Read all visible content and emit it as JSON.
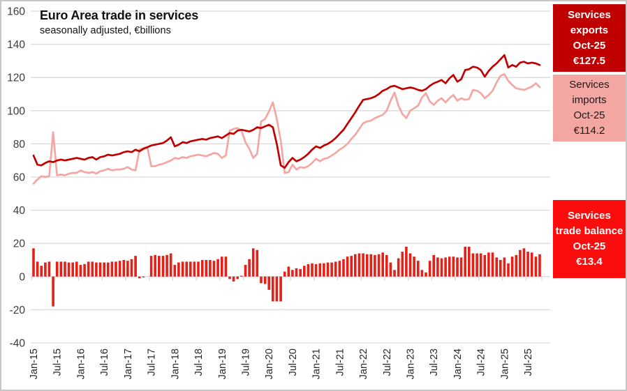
{
  "chart_data": {
    "type": "line+bar",
    "title": "Euro Area trade in services",
    "subtitle": "seasonally adjusted, €billions",
    "ylim": [
      -40,
      160
    ],
    "y_ticks": [
      160,
      140,
      120,
      100,
      80,
      60,
      40,
      20,
      0,
      -20,
      -40
    ],
    "grid": true,
    "grid_color": "#d9d9d9",
    "axis_label_color": "#3b3b3b",
    "x_tick_labels": [
      "Jan-15",
      "Jul-15",
      "Jan-16",
      "Jul-16",
      "Jan-17",
      "Jul-17",
      "Jan-18",
      "Jul-18",
      "Jan-19",
      "Jul-19",
      "Jan-20",
      "Jul-20",
      "Jan-21",
      "Jul-21",
      "Jan-22",
      "Jul-22",
      "Jan-23",
      "Jul-23",
      "Jan-24",
      "Jul-24",
      "Jan-25",
      "Jul-25"
    ],
    "x_tick_indices": [
      0,
      6,
      12,
      18,
      24,
      30,
      36,
      42,
      48,
      54,
      60,
      66,
      72,
      78,
      84,
      90,
      96,
      102,
      108,
      114,
      120,
      126
    ],
    "x_range": "Jan-15 to Oct-25, monthly",
    "series": [
      {
        "name": "Services exports",
        "type": "line",
        "color": "#c00000",
        "values": [
          73,
          67.5,
          67,
          68.5,
          69.5,
          69,
          70,
          70.5,
          70,
          70.5,
          71,
          71.5,
          71,
          70.5,
          71.5,
          72,
          70.5,
          72,
          72.5,
          73.5,
          73,
          73.5,
          74,
          75,
          75.5,
          75,
          76.5,
          75.5,
          77,
          78,
          79,
          79.5,
          80,
          80.5,
          82,
          84,
          78.5,
          79.5,
          81,
          80.5,
          81.5,
          82,
          82.5,
          83,
          82.5,
          83.5,
          84,
          84.5,
          83.5,
          85,
          86.5,
          86,
          88,
          88.5,
          88,
          87.5,
          88.5,
          90,
          89.5,
          90.5,
          91.5,
          90,
          80,
          67,
          65.5,
          69,
          71.5,
          69.5,
          70.5,
          72,
          74,
          76.5,
          78.5,
          77.5,
          79,
          80,
          81.5,
          83.5,
          86,
          88.5,
          92,
          95.5,
          99,
          103,
          106.5,
          107,
          107.5,
          108.5,
          110,
          112,
          113,
          114.5,
          115,
          114,
          113,
          113.5,
          114,
          113.5,
          112.5,
          112,
          113,
          115,
          116.5,
          117.5,
          118.5,
          116.5,
          119.5,
          121.5,
          117.5,
          119,
          124.5,
          125,
          126.5,
          126,
          124.5,
          120.5,
          124,
          126.5,
          128.5,
          131,
          133.5,
          126,
          127.5,
          126.5,
          129,
          129.5,
          128.5,
          129,
          128.5,
          127.5
        ]
      },
      {
        "name": "Services imports",
        "type": "line",
        "color": "#f4a6a2",
        "values": [
          56,
          58.5,
          60.5,
          60,
          60.5,
          87,
          61,
          61.5,
          61,
          62,
          62.5,
          62.5,
          64,
          63,
          62.5,
          63,
          62,
          63.5,
          64,
          65,
          64,
          64.5,
          64.5,
          65,
          66,
          64.5,
          64,
          76.5,
          77.5,
          78,
          66.5,
          66.5,
          67.5,
          68,
          69,
          70,
          71.5,
          71,
          72,
          71.5,
          72.5,
          73,
          73.5,
          73,
          72.5,
          73.5,
          74.5,
          74,
          71.5,
          73,
          88,
          89,
          89.5,
          88,
          81,
          77,
          71.5,
          74,
          93.5,
          95,
          99.5,
          105,
          95,
          82,
          62.5,
          63,
          67.5,
          64.5,
          66,
          65.5,
          66.5,
          68.5,
          71,
          69.5,
          71,
          71.5,
          73,
          74.5,
          76.5,
          78,
          80,
          83,
          85.5,
          89,
          92.5,
          93.5,
          94,
          95.5,
          96.5,
          97.5,
          100,
          106,
          111,
          103,
          98,
          95.5,
          100,
          101.5,
          103,
          108,
          110.5,
          105.5,
          103.5,
          106,
          107.5,
          105,
          107.5,
          109.5,
          106,
          107.5,
          106.5,
          107,
          112.5,
          112,
          110.5,
          107.5,
          109.5,
          112,
          117,
          121,
          122,
          118,
          115.5,
          113.5,
          113,
          112.5,
          113.5,
          114.5,
          116.5,
          114.2
        ]
      },
      {
        "name": "Services trade balance",
        "type": "bar",
        "color": "#e32119",
        "values": [
          17,
          9,
          6.5,
          8.5,
          9,
          -18,
          9,
          9,
          9,
          8.5,
          8.5,
          9,
          7,
          7.5,
          9,
          9,
          8.5,
          8.5,
          8.5,
          8.5,
          9,
          9,
          9.5,
          10,
          9.5,
          10.5,
          12.5,
          -1,
          -0.5,
          0,
          12.5,
          13,
          12.5,
          12.5,
          13,
          14,
          7,
          8.5,
          9,
          9,
          9,
          9,
          9,
          10,
          10,
          10,
          9.5,
          10.5,
          12,
          12,
          -1.5,
          -3,
          -1.5,
          0.5,
          7,
          10.5,
          17,
          16,
          -4,
          -4.5,
          -8,
          -15,
          -15,
          -15,
          3,
          6,
          4,
          5,
          4.5,
          6.5,
          7.5,
          8,
          7.5,
          8,
          8,
          8.5,
          8.5,
          9,
          9.5,
          10.5,
          12,
          12.5,
          13.5,
          14,
          14,
          13.5,
          13.5,
          13,
          13.5,
          14.5,
          13,
          8.5,
          4,
          11,
          15,
          18,
          14,
          12,
          9.5,
          4,
          2.5,
          9.5,
          13,
          11.5,
          11,
          11.5,
          12,
          12,
          11.5,
          11.5,
          18,
          18,
          14,
          14,
          14,
          13,
          14.5,
          14.5,
          11.5,
          10,
          11.5,
          8,
          12,
          13,
          16,
          17,
          15,
          14.5,
          12,
          13.4
        ]
      }
    ]
  },
  "labels": {
    "exports": {
      "bg": "#c00000",
      "l1": "Services",
      "l2": "exports",
      "l3": "Oct-25",
      "l4": "€127.5"
    },
    "imports": {
      "bg": "#f4a6a2",
      "l1": "Services",
      "l2": "imports",
      "l3": "Oct-25",
      "l4": "€114.2"
    },
    "balance": {
      "bg": "#fb0d0d",
      "l1": "Services",
      "l2": "trade balance",
      "l3": "Oct-25",
      "l4": "€13.4"
    }
  }
}
